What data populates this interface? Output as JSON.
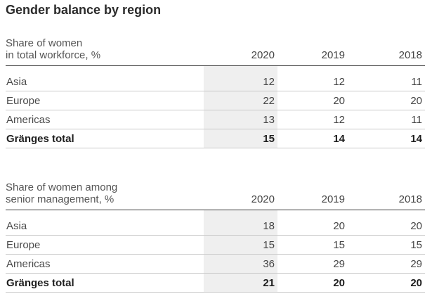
{
  "title": "Gender balance by region",
  "years": [
    "2020",
    "2019",
    "2018"
  ],
  "tables": [
    {
      "header_line1": "Share of women",
      "header_line2": "in total workforce, %",
      "rows": [
        {
          "label": "Asia",
          "values": [
            "12",
            "12",
            "11"
          ]
        },
        {
          "label": "Europe",
          "values": [
            "22",
            "20",
            "20"
          ]
        },
        {
          "label": "Americas",
          "values": [
            "13",
            "12",
            "11"
          ]
        }
      ],
      "total": {
        "label": "Gränges total",
        "values": [
          "15",
          "14",
          "14"
        ]
      }
    },
    {
      "header_line1": "Share of women among",
      "header_line2": "senior management, %",
      "rows": [
        {
          "label": "Asia",
          "values": [
            "18",
            "20",
            "20"
          ]
        },
        {
          "label": "Europe",
          "values": [
            "15",
            "15",
            "15"
          ]
        },
        {
          "label": "Americas",
          "values": [
            "36",
            "29",
            "29"
          ]
        }
      ],
      "total": {
        "label": "Gränges total",
        "values": [
          "21",
          "20",
          "20"
        ]
      }
    }
  ],
  "colors": {
    "highlight_column": "#efefef",
    "rule_strong": "#3a3a3a",
    "rule_light": "#c9c9c9",
    "text": "#2b2b2b"
  }
}
